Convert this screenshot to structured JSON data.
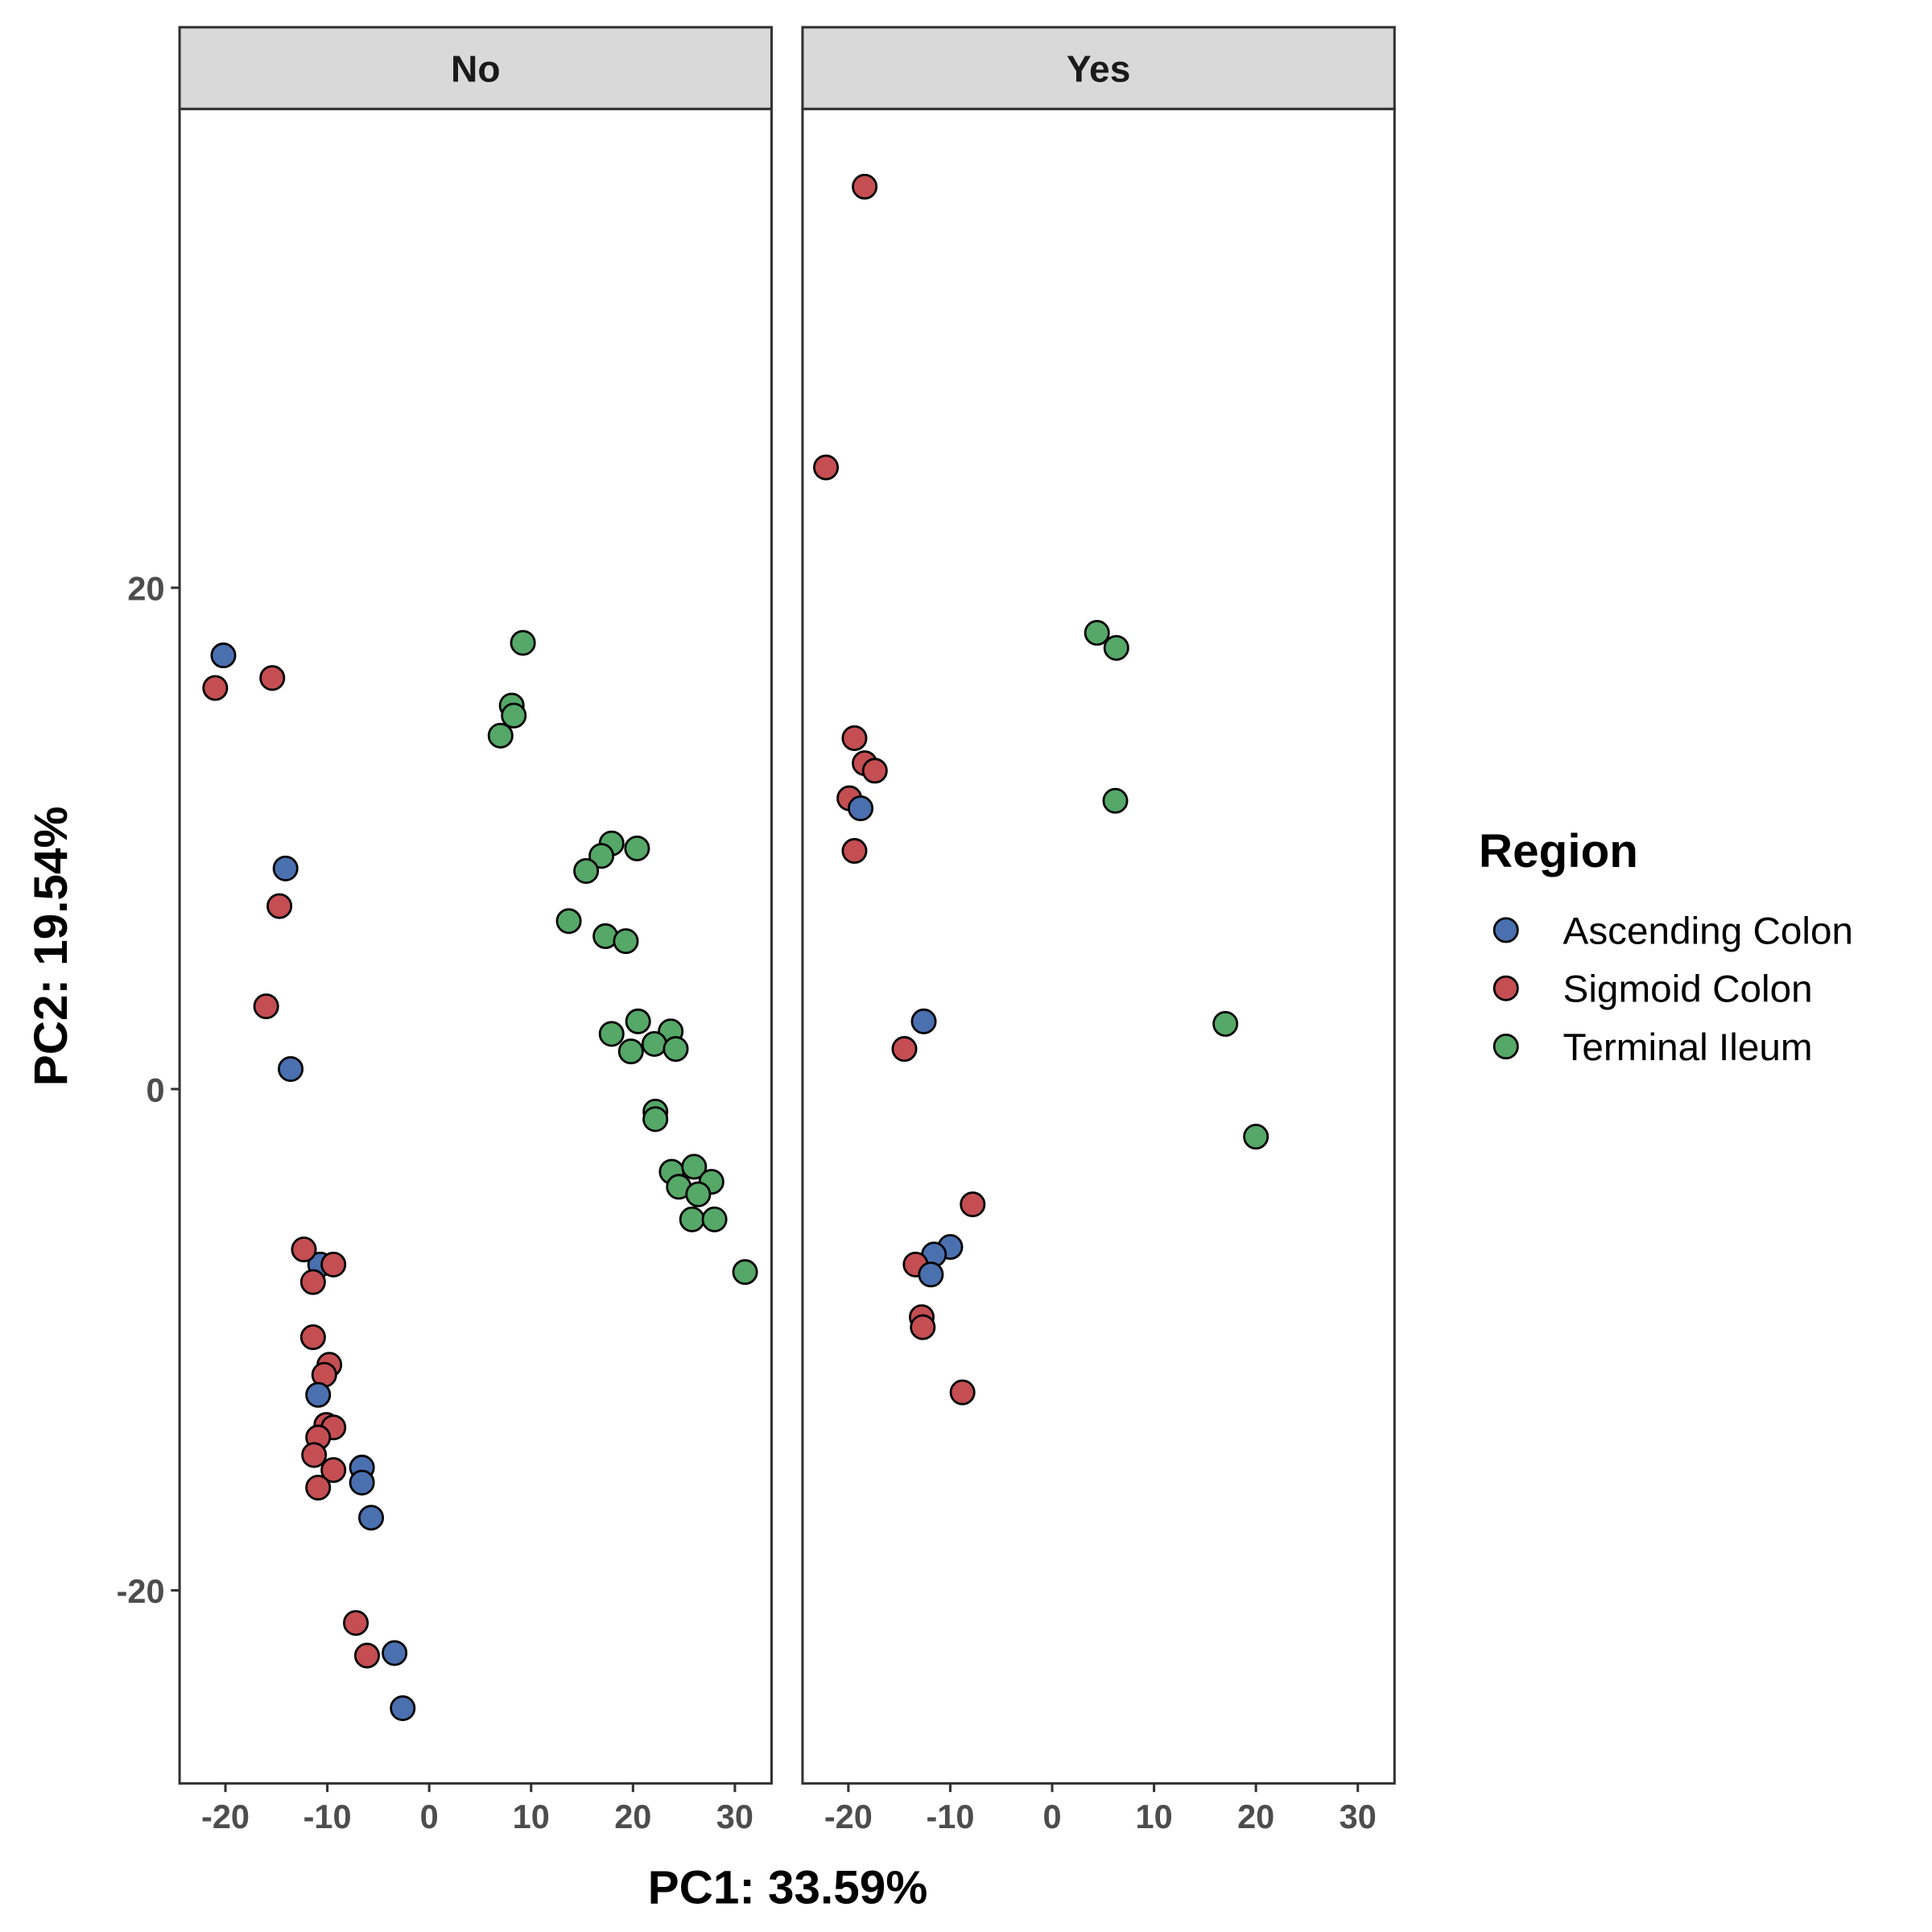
{
  "chart_data": {
    "type": "scatter",
    "xlabel": "PC1: 33.59%",
    "ylabel": "PC2: 19.54%",
    "xlim": [
      -24.5,
      33.6
    ],
    "ylim": [
      -27.7,
      39.1
    ],
    "x_ticks": [
      -20,
      -10,
      0,
      10,
      20,
      30
    ],
    "x_tick_labels": [
      "-20",
      "-10",
      "0",
      "10",
      "20",
      "30"
    ],
    "y_ticks": [
      -20,
      0,
      20
    ],
    "y_tick_labels": [
      "-20",
      "0",
      "20"
    ],
    "grid": false,
    "legend": {
      "title": "Region",
      "placement": "right",
      "entries": [
        {
          "name": "Ascending Colon",
          "color": "#4a70b0"
        },
        {
          "name": "Sigmoid Colon",
          "color": "#c44e52"
        },
        {
          "name": "Terminal Ileum",
          "color": "#55a868"
        }
      ]
    },
    "panels": [
      {
        "label": "No",
        "points": [
          [
            -20.2,
            17.3,
            "Ascending Colon"
          ],
          [
            -21.0,
            16.0,
            "Sigmoid Colon"
          ],
          [
            -15.4,
            16.4,
            "Sigmoid Colon"
          ],
          [
            -14.1,
            8.8,
            "Ascending Colon"
          ],
          [
            -14.7,
            7.3,
            "Sigmoid Colon"
          ],
          [
            -16.0,
            3.3,
            "Sigmoid Colon"
          ],
          [
            -13.6,
            0.8,
            "Ascending Colon"
          ],
          [
            -10.7,
            -7.0,
            "Ascending Colon"
          ],
          [
            -12.3,
            -6.4,
            "Sigmoid Colon"
          ],
          [
            -9.4,
            -7.0,
            "Sigmoid Colon"
          ],
          [
            -11.4,
            -7.7,
            "Sigmoid Colon"
          ],
          [
            -11.4,
            -9.9,
            "Sigmoid Colon"
          ],
          [
            -9.8,
            -11.0,
            "Sigmoid Colon"
          ],
          [
            -10.3,
            -11.4,
            "Sigmoid Colon"
          ],
          [
            -10.9,
            -12.2,
            "Ascending Colon"
          ],
          [
            -10.1,
            -13.4,
            "Sigmoid Colon"
          ],
          [
            -9.4,
            -13.5,
            "Sigmoid Colon"
          ],
          [
            -10.9,
            -13.9,
            "Sigmoid Colon"
          ],
          [
            -11.3,
            -14.6,
            "Sigmoid Colon"
          ],
          [
            -9.4,
            -15.2,
            "Sigmoid Colon"
          ],
          [
            -10.9,
            -15.9,
            "Sigmoid Colon"
          ],
          [
            -6.6,
            -15.1,
            "Ascending Colon"
          ],
          [
            -6.6,
            -15.7,
            "Ascending Colon"
          ],
          [
            -5.7,
            -17.1,
            "Ascending Colon"
          ],
          [
            -7.2,
            -21.3,
            "Sigmoid Colon"
          ],
          [
            -6.1,
            -22.6,
            "Sigmoid Colon"
          ],
          [
            -3.4,
            -22.5,
            "Ascending Colon"
          ],
          [
            -2.6,
            -24.7,
            "Ascending Colon"
          ],
          [
            9.2,
            17.8,
            "Terminal Ileum"
          ],
          [
            8.1,
            15.3,
            "Terminal Ileum"
          ],
          [
            8.3,
            14.9,
            "Terminal Ileum"
          ],
          [
            7.0,
            14.1,
            "Terminal Ileum"
          ],
          [
            17.9,
            9.8,
            "Terminal Ileum"
          ],
          [
            16.9,
            9.3,
            "Terminal Ileum"
          ],
          [
            15.4,
            8.7,
            "Terminal Ileum"
          ],
          [
            20.4,
            9.6,
            "Terminal Ileum"
          ],
          [
            13.7,
            6.7,
            "Terminal Ileum"
          ],
          [
            17.3,
            6.1,
            "Terminal Ileum"
          ],
          [
            19.3,
            5.9,
            "Terminal Ileum"
          ],
          [
            20.5,
            2.7,
            "Terminal Ileum"
          ],
          [
            17.9,
            2.2,
            "Terminal Ileum"
          ],
          [
            23.7,
            2.3,
            "Terminal Ileum"
          ],
          [
            22.1,
            1.8,
            "Terminal Ileum"
          ],
          [
            19.8,
            1.5,
            "Terminal Ileum"
          ],
          [
            24.2,
            1.6,
            "Terminal Ileum"
          ],
          [
            22.2,
            -0.9,
            "Terminal Ileum"
          ],
          [
            22.2,
            -1.2,
            "Terminal Ileum"
          ],
          [
            23.8,
            -3.3,
            "Terminal Ileum"
          ],
          [
            26.0,
            -3.1,
            "Terminal Ileum"
          ],
          [
            27.7,
            -3.7,
            "Terminal Ileum"
          ],
          [
            24.5,
            -3.9,
            "Terminal Ileum"
          ],
          [
            26.4,
            -4.2,
            "Terminal Ileum"
          ],
          [
            25.8,
            -5.2,
            "Terminal Ileum"
          ],
          [
            28.0,
            -5.2,
            "Terminal Ileum"
          ],
          [
            31.0,
            -7.3,
            "Terminal Ileum"
          ]
        ]
      },
      {
        "label": "Yes",
        "points": [
          [
            -18.4,
            36.0,
            "Sigmoid Colon"
          ],
          [
            -22.2,
            24.8,
            "Sigmoid Colon"
          ],
          [
            -19.4,
            14.0,
            "Sigmoid Colon"
          ],
          [
            -18.4,
            13.0,
            "Sigmoid Colon"
          ],
          [
            -17.4,
            12.7,
            "Sigmoid Colon"
          ],
          [
            -19.9,
            11.6,
            "Sigmoid Colon"
          ],
          [
            -18.8,
            11.2,
            "Ascending Colon"
          ],
          [
            -19.4,
            9.5,
            "Sigmoid Colon"
          ],
          [
            -12.6,
            2.7,
            "Ascending Colon"
          ],
          [
            -14.5,
            1.6,
            "Sigmoid Colon"
          ],
          [
            -7.8,
            -4.6,
            "Sigmoid Colon"
          ],
          [
            -10.0,
            -6.3,
            "Ascending Colon"
          ],
          [
            -11.6,
            -6.6,
            "Ascending Colon"
          ],
          [
            -13.4,
            -7.0,
            "Sigmoid Colon"
          ],
          [
            -11.9,
            -7.4,
            "Ascending Colon"
          ],
          [
            -12.8,
            -9.1,
            "Sigmoid Colon"
          ],
          [
            -12.7,
            -9.5,
            "Sigmoid Colon"
          ],
          [
            -8.8,
            -12.1,
            "Sigmoid Colon"
          ],
          [
            4.4,
            18.2,
            "Terminal Ileum"
          ],
          [
            6.3,
            17.6,
            "Terminal Ileum"
          ],
          [
            6.2,
            11.5,
            "Terminal Ileum"
          ],
          [
            17.0,
            2.6,
            "Terminal Ileum"
          ],
          [
            20.0,
            -1.9,
            "Terminal Ileum"
          ]
        ]
      }
    ]
  }
}
